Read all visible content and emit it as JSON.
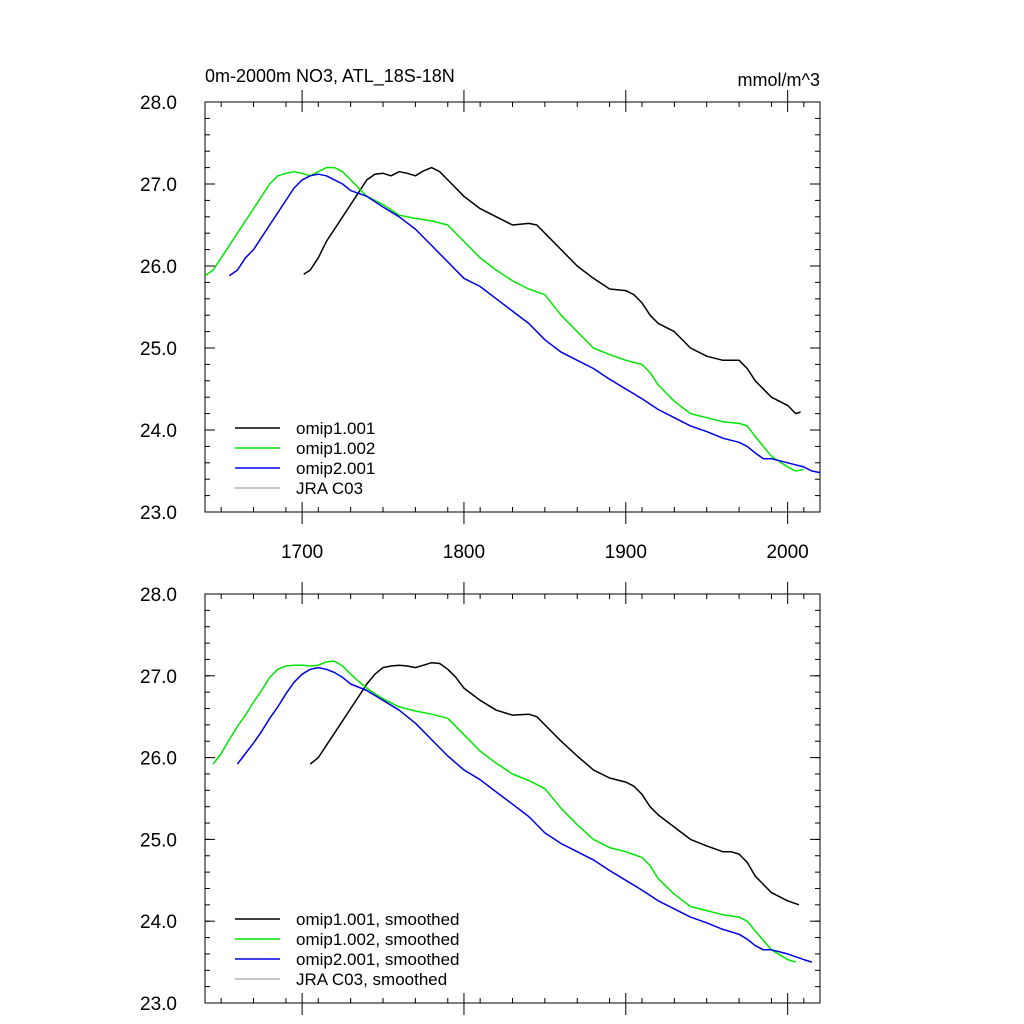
{
  "header": {
    "title": "0m-2000m NO3, ATL_18S-18N",
    "units": "mmol/m^3"
  },
  "colors": {
    "omip1_001": "#000000",
    "omip1_002": "#00e600",
    "omip2_001": "#0000e6",
    "jra_c03": "#b4b4b4"
  },
  "chart_data": [
    {
      "type": "line",
      "panel": "top",
      "xlim": [
        1640,
        2020
      ],
      "ylim": [
        23.0,
        28.0
      ],
      "x_ticks": [
        1700,
        1800,
        1900,
        2000
      ],
      "x_tick_labels": [
        "1700",
        "1800",
        "1900",
        "2000"
      ],
      "y_ticks": [
        23.0,
        24.0,
        25.0,
        26.0,
        27.0,
        28.0
      ],
      "y_tick_labels": [
        "23.0",
        "24.0",
        "25.0",
        "26.0",
        "27.0",
        "28.0"
      ],
      "legend_position": "bottom-left",
      "legend": [
        "omip1.001",
        "omip1.002",
        "omip2.001",
        "JRA C03"
      ],
      "series": [
        {
          "name": "omip1.001",
          "color_key": "omip1_001",
          "x": [
            1701,
            1705,
            1710,
            1715,
            1720,
            1725,
            1730,
            1735,
            1740,
            1745,
            1750,
            1755,
            1760,
            1765,
            1770,
            1775,
            1780,
            1785,
            1790,
            1795,
            1800,
            1810,
            1820,
            1830,
            1840,
            1845,
            1850,
            1860,
            1870,
            1880,
            1890,
            1900,
            1905,
            1910,
            1915,
            1920,
            1930,
            1940,
            1950,
            1960,
            1965,
            1970,
            1975,
            1980,
            1990,
            2000,
            2005,
            2008
          ],
          "y": [
            25.9,
            25.95,
            26.1,
            26.3,
            26.45,
            26.6,
            26.75,
            26.9,
            27.05,
            27.12,
            27.13,
            27.1,
            27.15,
            27.13,
            27.1,
            27.16,
            27.2,
            27.15,
            27.05,
            26.95,
            26.85,
            26.7,
            26.6,
            26.5,
            26.52,
            26.5,
            26.4,
            26.2,
            26.0,
            25.85,
            25.72,
            25.7,
            25.65,
            25.55,
            25.4,
            25.3,
            25.2,
            25.0,
            24.9,
            24.85,
            24.85,
            24.85,
            24.75,
            24.6,
            24.4,
            24.3,
            24.2,
            24.22
          ]
        },
        {
          "name": "omip1.002",
          "color_key": "omip1_002",
          "x": [
            1640,
            1645,
            1650,
            1655,
            1660,
            1665,
            1670,
            1675,
            1680,
            1685,
            1690,
            1695,
            1700,
            1705,
            1710,
            1715,
            1720,
            1725,
            1730,
            1735,
            1740,
            1745,
            1750,
            1760,
            1770,
            1780,
            1790,
            1800,
            1810,
            1820,
            1830,
            1840,
            1850,
            1860,
            1870,
            1880,
            1890,
            1900,
            1910,
            1915,
            1920,
            1930,
            1940,
            1950,
            1960,
            1970,
            1975,
            1980,
            1990,
            2000,
            2005,
            2010
          ],
          "y": [
            25.88,
            25.95,
            26.1,
            26.25,
            26.4,
            26.55,
            26.7,
            26.85,
            27.0,
            27.1,
            27.13,
            27.15,
            27.13,
            27.1,
            27.15,
            27.2,
            27.2,
            27.15,
            27.05,
            26.95,
            26.85,
            26.8,
            26.75,
            26.62,
            26.58,
            26.55,
            26.5,
            26.3,
            26.1,
            25.95,
            25.82,
            25.72,
            25.65,
            25.4,
            25.2,
            25.0,
            24.92,
            24.85,
            24.8,
            24.7,
            24.55,
            24.35,
            24.2,
            24.15,
            24.1,
            24.08,
            24.05,
            23.92,
            23.68,
            23.55,
            23.5,
            23.52
          ]
        },
        {
          "name": "omip2.001",
          "color_key": "omip2_001",
          "x": [
            1655,
            1660,
            1665,
            1670,
            1675,
            1680,
            1685,
            1690,
            1695,
            1700,
            1705,
            1710,
            1715,
            1720,
            1725,
            1730,
            1740,
            1750,
            1760,
            1770,
            1780,
            1790,
            1800,
            1810,
            1820,
            1830,
            1840,
            1850,
            1860,
            1870,
            1880,
            1890,
            1900,
            1910,
            1920,
            1930,
            1940,
            1950,
            1960,
            1970,
            1975,
            1980,
            1985,
            1990,
            2000,
            2010,
            2015,
            2020
          ],
          "y": [
            25.88,
            25.95,
            26.1,
            26.2,
            26.35,
            26.5,
            26.65,
            26.8,
            26.95,
            27.05,
            27.1,
            27.12,
            27.1,
            27.05,
            27.0,
            26.92,
            26.85,
            26.72,
            26.6,
            26.45,
            26.25,
            26.05,
            25.85,
            25.75,
            25.6,
            25.45,
            25.3,
            25.1,
            24.95,
            24.85,
            24.75,
            24.62,
            24.5,
            24.38,
            24.25,
            24.15,
            24.05,
            23.98,
            23.9,
            23.85,
            23.8,
            23.72,
            23.65,
            23.65,
            23.6,
            23.55,
            23.5,
            23.48
          ]
        },
        {
          "name": "JRA C03",
          "color_key": "jra_c03",
          "x": [],
          "y": []
        }
      ]
    },
    {
      "type": "line",
      "panel": "bottom",
      "xlim": [
        1640,
        2020
      ],
      "ylim": [
        23.0,
        28.0
      ],
      "x_ticks": [
        1700,
        1800,
        1900,
        2000
      ],
      "y_ticks": [
        23.0,
        24.0,
        25.0,
        26.0,
        27.0,
        28.0
      ],
      "y_tick_labels": [
        "23.0",
        "24.0",
        "25.0",
        "26.0",
        "27.0",
        "28.0"
      ],
      "legend_position": "bottom-left",
      "legend": [
        "omip1.001, smoothed",
        "omip1.002, smoothed",
        "omip2.001, smoothed",
        "JRA C03, smoothed"
      ],
      "series": [
        {
          "name": "omip1.001, smoothed",
          "color_key": "omip1_001",
          "x": [
            1705,
            1710,
            1715,
            1720,
            1725,
            1730,
            1735,
            1740,
            1745,
            1750,
            1755,
            1760,
            1765,
            1770,
            1775,
            1780,
            1785,
            1790,
            1795,
            1800,
            1810,
            1820,
            1830,
            1840,
            1845,
            1850,
            1860,
            1870,
            1880,
            1890,
            1900,
            1905,
            1910,
            1915,
            1920,
            1930,
            1940,
            1950,
            1960,
            1965,
            1970,
            1975,
            1980,
            1990,
            2000,
            2007
          ],
          "y": [
            25.92,
            26.0,
            26.15,
            26.3,
            26.45,
            26.6,
            26.75,
            26.9,
            27.02,
            27.1,
            27.12,
            27.13,
            27.12,
            27.1,
            27.13,
            27.16,
            27.15,
            27.08,
            26.98,
            26.85,
            26.7,
            26.58,
            26.52,
            26.53,
            26.5,
            26.4,
            26.2,
            26.02,
            25.85,
            25.75,
            25.7,
            25.65,
            25.55,
            25.4,
            25.3,
            25.15,
            25.0,
            24.92,
            24.85,
            24.85,
            24.82,
            24.72,
            24.55,
            24.35,
            24.25,
            24.2
          ]
        },
        {
          "name": "omip1.002, smoothed",
          "color_key": "omip1_002",
          "x": [
            1645,
            1650,
            1655,
            1660,
            1665,
            1670,
            1675,
            1680,
            1685,
            1690,
            1695,
            1700,
            1705,
            1710,
            1715,
            1720,
            1725,
            1730,
            1735,
            1740,
            1745,
            1750,
            1760,
            1770,
            1780,
            1790,
            1800,
            1810,
            1820,
            1830,
            1840,
            1850,
            1860,
            1870,
            1880,
            1890,
            1900,
            1910,
            1915,
            1920,
            1930,
            1940,
            1950,
            1960,
            1970,
            1975,
            1980,
            1990,
            2000,
            2005
          ],
          "y": [
            25.92,
            26.05,
            26.22,
            26.38,
            26.52,
            26.68,
            26.82,
            26.98,
            27.08,
            27.12,
            27.13,
            27.13,
            27.12,
            27.13,
            27.17,
            27.18,
            27.12,
            27.02,
            26.93,
            26.85,
            26.78,
            26.72,
            26.62,
            26.57,
            26.53,
            26.48,
            26.28,
            26.08,
            25.93,
            25.8,
            25.72,
            25.62,
            25.38,
            25.18,
            25.0,
            24.9,
            24.85,
            24.78,
            24.68,
            24.52,
            24.33,
            24.18,
            24.13,
            24.08,
            24.05,
            24.0,
            23.88,
            23.65,
            23.53,
            23.5
          ]
        },
        {
          "name": "omip2.001, smoothed",
          "color_key": "omip2_001",
          "x": [
            1660,
            1665,
            1670,
            1675,
            1680,
            1685,
            1690,
            1695,
            1700,
            1705,
            1710,
            1715,
            1720,
            1725,
            1730,
            1740,
            1750,
            1760,
            1770,
            1780,
            1790,
            1800,
            1810,
            1820,
            1830,
            1840,
            1850,
            1860,
            1870,
            1880,
            1890,
            1900,
            1910,
            1920,
            1930,
            1940,
            1950,
            1960,
            1970,
            1975,
            1980,
            1985,
            1990,
            2000,
            2010,
            2015
          ],
          "y": [
            25.92,
            26.05,
            26.18,
            26.32,
            26.48,
            26.62,
            26.78,
            26.92,
            27.02,
            27.08,
            27.1,
            27.08,
            27.04,
            26.98,
            26.9,
            26.82,
            26.7,
            26.58,
            26.42,
            26.22,
            26.02,
            25.85,
            25.73,
            25.58,
            25.43,
            25.28,
            25.08,
            24.95,
            24.85,
            24.75,
            24.62,
            24.5,
            24.38,
            24.25,
            24.15,
            24.05,
            23.98,
            23.9,
            23.84,
            23.78,
            23.7,
            23.65,
            23.65,
            23.6,
            23.53,
            23.5
          ]
        },
        {
          "name": "JRA C03, smoothed",
          "color_key": "jra_c03",
          "x": [],
          "y": []
        }
      ]
    }
  ]
}
